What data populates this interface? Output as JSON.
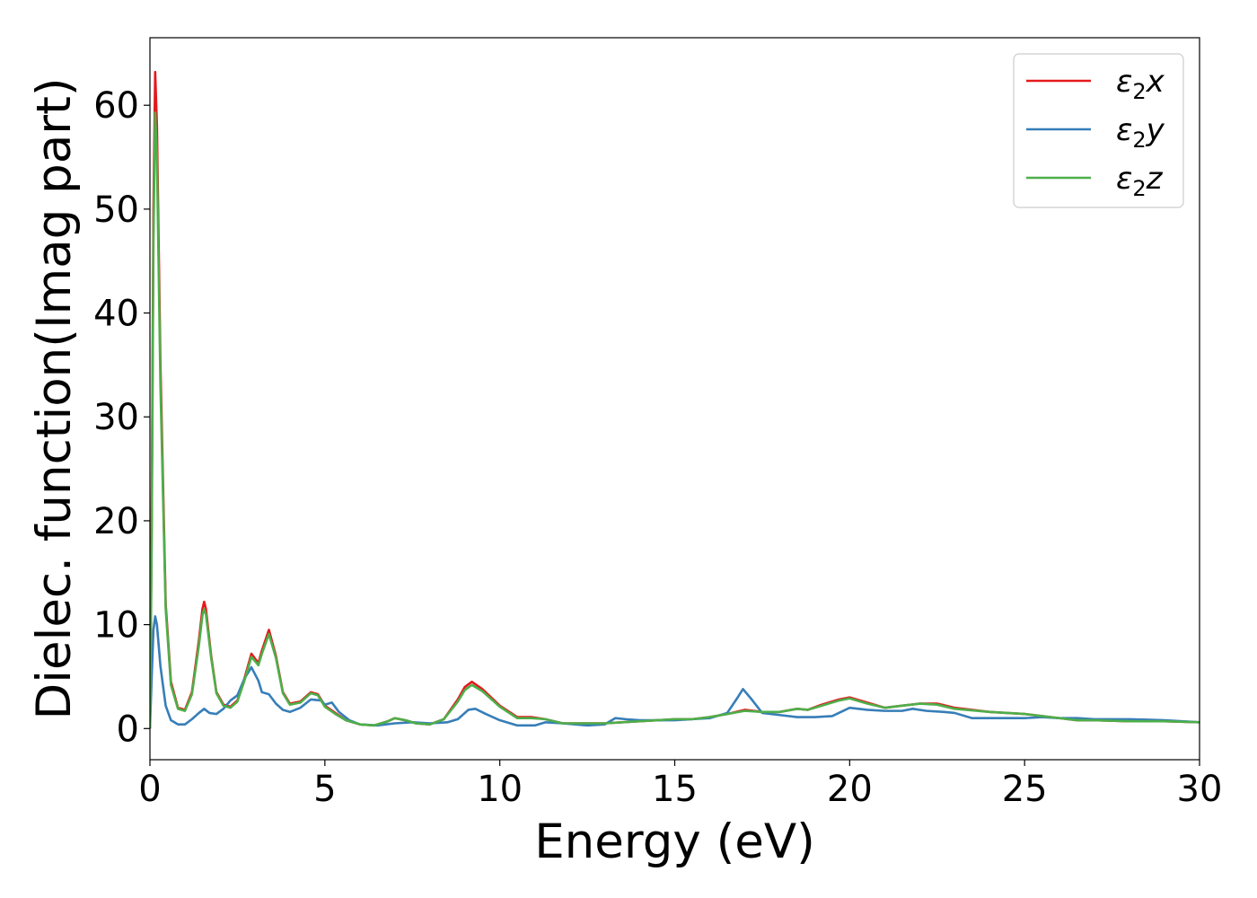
{
  "chart_data": {
    "type": "line",
    "title": "",
    "xlabel": "Energy (eV)",
    "ylabel": "Dielec. function(Imag part)",
    "xlim": [
      0,
      30
    ],
    "ylim": [
      -3,
      66.5
    ],
    "xticks": [
      0,
      5,
      10,
      15,
      20,
      25,
      30
    ],
    "yticks": [
      0,
      10,
      20,
      30,
      40,
      50,
      60
    ],
    "xtick_labels": [
      "0",
      "5",
      "10",
      "15",
      "20",
      "25",
      "30"
    ],
    "ytick_labels": [
      "0",
      "10",
      "20",
      "30",
      "40",
      "50",
      "60"
    ],
    "grid": false,
    "legend_position": "top-right",
    "series": [
      {
        "name": "ε2x",
        "legend_main": "ε",
        "legend_sub": "2",
        "legend_suffix": "x",
        "color": "#e41a1c",
        "x": [
          0,
          0.05,
          0.1,
          0.15,
          0.2,
          0.3,
          0.45,
          0.6,
          0.8,
          1.0,
          1.2,
          1.4,
          1.5,
          1.55,
          1.6,
          1.75,
          1.9,
          2.1,
          2.3,
          2.5,
          2.7,
          2.9,
          3.1,
          3.2,
          3.4,
          3.6,
          3.8,
          4.0,
          4.3,
          4.6,
          4.8,
          5.0,
          5.3,
          5.6,
          6.0,
          6.4,
          6.8,
          7.0,
          7.3,
          7.6,
          8.0,
          8.4,
          8.8,
          9.0,
          9.2,
          9.5,
          10.0,
          10.5,
          10.9,
          11.3,
          11.8,
          12.5,
          13.0,
          13.5,
          14.0,
          14.5,
          15.0,
          15.5,
          16.0,
          16.5,
          17.0,
          17.5,
          18.0,
          18.5,
          18.8,
          19.2,
          19.7,
          20.0,
          20.5,
          21.0,
          21.5,
          22.0,
          22.5,
          23.0,
          24.0,
          25.0,
          25.5,
          26.0,
          26.5,
          27.0,
          28.0,
          29.0,
          30.0
        ],
        "y": [
          0,
          20,
          50,
          63.2,
          58,
          35,
          12,
          4.5,
          2.0,
          1.8,
          3.5,
          8.5,
          11.5,
          12.2,
          11.5,
          7.0,
          3.5,
          2.3,
          2.1,
          2.7,
          4.8,
          7.2,
          6.3,
          7.5,
          9.5,
          7.0,
          3.5,
          2.4,
          2.6,
          3.5,
          3.3,
          2.2,
          1.5,
          0.8,
          0.4,
          0.3,
          0.7,
          1.0,
          0.8,
          0.5,
          0.4,
          0.9,
          2.8,
          4.0,
          4.5,
          3.8,
          2.2,
          1.1,
          1.1,
          0.9,
          0.5,
          0.5,
          0.5,
          0.6,
          0.7,
          0.8,
          0.9,
          0.9,
          1.1,
          1.4,
          1.8,
          1.6,
          1.6,
          1.9,
          1.8,
          2.3,
          2.8,
          3.0,
          2.5,
          2.0,
          2.2,
          2.4,
          2.4,
          2.0,
          1.6,
          1.4,
          1.2,
          1.0,
          0.8,
          0.8,
          0.7,
          0.7,
          0.6
        ]
      },
      {
        "name": "ε2y",
        "legend_main": "ε",
        "legend_sub": "2",
        "legend_suffix": "y",
        "color": "#377eb8",
        "x": [
          0,
          0.05,
          0.1,
          0.15,
          0.2,
          0.3,
          0.45,
          0.6,
          0.8,
          1.0,
          1.2,
          1.4,
          1.55,
          1.7,
          1.9,
          2.1,
          2.3,
          2.5,
          2.7,
          2.9,
          3.1,
          3.2,
          3.4,
          3.6,
          3.8,
          4.0,
          4.3,
          4.6,
          4.9,
          5.0,
          5.2,
          5.4,
          5.7,
          6.0,
          6.5,
          7.0,
          7.5,
          8.0,
          8.5,
          8.8,
          9.1,
          9.3,
          9.6,
          10.0,
          10.5,
          11.0,
          11.3,
          11.8,
          12.5,
          13.0,
          13.3,
          13.6,
          14.0,
          14.5,
          15.0,
          15.5,
          16.0,
          16.5,
          16.8,
          16.95,
          17.2,
          17.5,
          18.0,
          18.5,
          19.0,
          19.5,
          20.0,
          20.5,
          21.0,
          21.5,
          21.8,
          22.2,
          22.7,
          23.0,
          23.5,
          24.0,
          25.0,
          25.5,
          26.0,
          26.5,
          27.0,
          28.0,
          29.0,
          30.0
        ],
        "y": [
          0,
          5,
          9.5,
          10.8,
          10.0,
          6,
          2.2,
          0.8,
          0.4,
          0.4,
          0.9,
          1.5,
          1.9,
          1.5,
          1.4,
          1.9,
          2.7,
          3.2,
          4.8,
          5.9,
          4.6,
          3.5,
          3.3,
          2.4,
          1.8,
          1.6,
          2.0,
          2.8,
          2.7,
          2.3,
          2.5,
          1.6,
          0.8,
          0.4,
          0.3,
          0.5,
          0.6,
          0.5,
          0.6,
          0.9,
          1.8,
          1.9,
          1.4,
          0.8,
          0.3,
          0.3,
          0.6,
          0.5,
          0.3,
          0.4,
          1.0,
          0.9,
          0.8,
          0.8,
          0.8,
          0.9,
          1.0,
          1.5,
          3.0,
          3.8,
          2.8,
          1.5,
          1.3,
          1.1,
          1.1,
          1.2,
          2.0,
          1.8,
          1.7,
          1.7,
          1.9,
          1.7,
          1.6,
          1.5,
          1.0,
          1.0,
          1.0,
          1.1,
          1.0,
          1.0,
          0.9,
          0.9,
          0.8,
          0.6
        ]
      },
      {
        "name": "ε2z",
        "legend_main": "ε",
        "legend_sub": "2",
        "legend_suffix": "z",
        "color": "#4daf4a",
        "x": [
          0,
          0.05,
          0.1,
          0.15,
          0.2,
          0.3,
          0.45,
          0.6,
          0.8,
          1.0,
          1.2,
          1.4,
          1.5,
          1.55,
          1.6,
          1.75,
          1.9,
          2.1,
          2.3,
          2.5,
          2.7,
          2.9,
          3.1,
          3.2,
          3.4,
          3.6,
          3.8,
          4.0,
          4.3,
          4.6,
          4.8,
          5.0,
          5.3,
          5.6,
          6.0,
          6.4,
          6.8,
          7.0,
          7.3,
          7.6,
          8.0,
          8.4,
          8.8,
          9.0,
          9.2,
          9.5,
          10.0,
          10.5,
          10.9,
          11.3,
          11.8,
          12.5,
          13.0,
          13.5,
          14.0,
          14.5,
          15.0,
          15.5,
          16.0,
          16.5,
          17.0,
          17.5,
          18.0,
          18.5,
          18.8,
          19.2,
          19.7,
          20.0,
          20.5,
          21.0,
          21.5,
          22.0,
          22.5,
          23.0,
          24.0,
          25.0,
          25.5,
          26.0,
          26.5,
          27.0,
          28.0,
          29.0,
          30.0
        ],
        "y": [
          0,
          18,
          47,
          59.3,
          55,
          33,
          11.5,
          4.2,
          1.9,
          1.7,
          3.3,
          8.0,
          10.9,
          11.5,
          11.0,
          6.8,
          3.4,
          2.2,
          2.0,
          2.6,
          4.6,
          6.9,
          6.1,
          7.2,
          9.1,
          6.8,
          3.4,
          2.3,
          2.5,
          3.4,
          3.2,
          2.1,
          1.4,
          0.8,
          0.4,
          0.3,
          0.7,
          1.0,
          0.8,
          0.5,
          0.4,
          0.9,
          2.6,
          3.7,
          4.2,
          3.6,
          2.1,
          1.0,
          1.0,
          0.9,
          0.5,
          0.5,
          0.5,
          0.6,
          0.7,
          0.8,
          0.9,
          0.9,
          1.1,
          1.4,
          1.7,
          1.6,
          1.6,
          1.9,
          1.8,
          2.2,
          2.7,
          2.9,
          2.4,
          2.0,
          2.2,
          2.4,
          2.3,
          1.9,
          1.6,
          1.4,
          1.2,
          1.0,
          0.8,
          0.8,
          0.7,
          0.7,
          0.6
        ]
      }
    ]
  }
}
